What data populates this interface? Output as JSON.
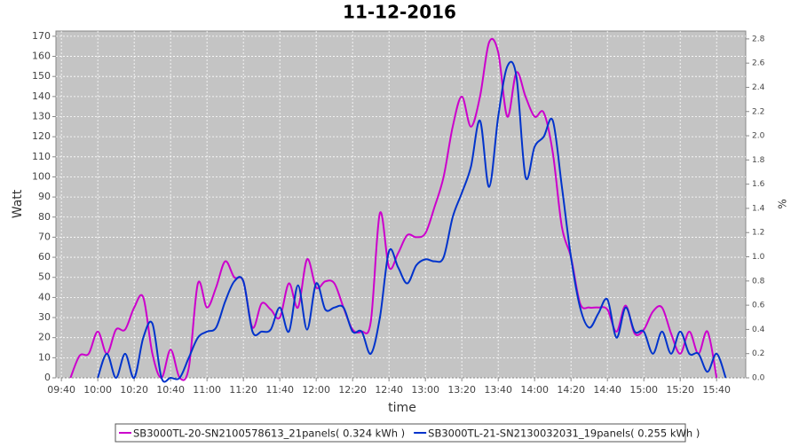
{
  "chart_data": {
    "type": "line",
    "title": "11-12-2016",
    "x_label": "time",
    "y_label": "Watt",
    "y2_label": "%",
    "x": [
      "09:45",
      "09:50",
      "09:55",
      "10:00",
      "10:05",
      "10:10",
      "10:15",
      "10:20",
      "10:25",
      "10:30",
      "10:35",
      "10:40",
      "10:45",
      "10:50",
      "10:55",
      "11:00",
      "11:05",
      "11:10",
      "11:15",
      "11:20",
      "11:25",
      "11:30",
      "11:35",
      "11:40",
      "11:45",
      "11:50",
      "11:55",
      "12:00",
      "12:05",
      "12:10",
      "12:15",
      "12:20",
      "12:25",
      "12:30",
      "12:35",
      "12:40",
      "12:45",
      "12:50",
      "12:55",
      "13:00",
      "13:05",
      "13:10",
      "13:15",
      "13:20",
      "13:25",
      "13:30",
      "13:35",
      "13:40",
      "13:45",
      "13:50",
      "13:55",
      "14:00",
      "14:05",
      "14:10",
      "14:15",
      "14:20",
      "14:25",
      "14:30",
      "14:35",
      "14:40",
      "14:45",
      "14:50",
      "14:55",
      "15:00",
      "15:05",
      "15:10",
      "15:15",
      "15:20",
      "15:25",
      "15:30",
      "15:35",
      "15:40",
      "15:45"
    ],
    "series": [
      {
        "name": "SB3000TL-20-SN2100578613_21panels( 0.324 kWh )",
        "color": "#cc00cc",
        "values": [
          0,
          11,
          12,
          23,
          12,
          24,
          24,
          35,
          40,
          12,
          0,
          14,
          0,
          5,
          47,
          35,
          45,
          58,
          50,
          48,
          25,
          37,
          34,
          30,
          47,
          35,
          59,
          45,
          48,
          47,
          35,
          24,
          23,
          28,
          82,
          55,
          62,
          71,
          70,
          72,
          85,
          100,
          125,
          140,
          125,
          140,
          167,
          162,
          130,
          152,
          140,
          130,
          132,
          112,
          75,
          60,
          37,
          35,
          35,
          34,
          23,
          36,
          22,
          24,
          33,
          35,
          22,
          12,
          23,
          12,
          23,
          0,
          null
        ]
      },
      {
        "name": "SB3000TL-21-SN2130032031_19panels( 0.255 kWh )",
        "color": "#0033cc",
        "values": [
          null,
          null,
          null,
          0,
          12,
          0,
          12,
          0,
          20,
          27,
          0,
          0,
          0,
          10,
          20,
          23,
          25,
          38,
          48,
          48,
          23,
          23,
          24,
          35,
          23,
          46,
          24,
          47,
          34,
          35,
          35,
          23,
          23,
          12,
          30,
          63,
          55,
          47,
          56,
          59,
          58,
          60,
          80,
          92,
          105,
          128,
          95,
          130,
          155,
          150,
          100,
          115,
          120,
          128,
          95,
          60,
          35,
          25,
          32,
          39,
          20,
          35,
          23,
          23,
          12,
          23,
          12,
          23,
          12,
          12,
          3,
          12,
          0
        ]
      }
    ],
    "xlim": [
      "09:37",
      "15:56"
    ],
    "xticks": [
      "09:40",
      "10:00",
      "10:20",
      "10:40",
      "11:00",
      "11:20",
      "11:40",
      "12:00",
      "12:20",
      "12:40",
      "13:00",
      "13:20",
      "13:40",
      "14:00",
      "14:20",
      "14:40",
      "15:00",
      "15:20",
      "15:40"
    ],
    "ylim": [
      0,
      172.6
    ],
    "yticks": [
      0,
      10,
      20,
      30,
      40,
      50,
      60,
      70,
      80,
      90,
      100,
      110,
      120,
      130,
      140,
      150,
      160,
      170
    ],
    "y2lim": [
      0,
      2.865
    ],
    "y2ticks": [
      {
        "value": 0,
        "label": "0.0"
      },
      0.2,
      0.4,
      0.6,
      0.8,
      {
        "value": 1,
        "label": "1.0"
      },
      1.2,
      1.4,
      1.6,
      1.8,
      {
        "value": 2,
        "label": "2.0"
      },
      2.2,
      2.4,
      2.6,
      2.8
    ],
    "grid": true
  }
}
